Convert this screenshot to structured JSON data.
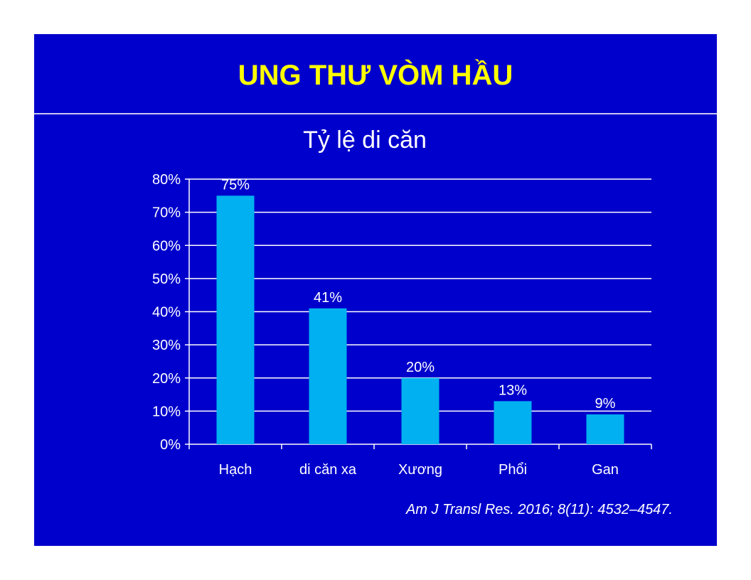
{
  "slide": {
    "title": "UNG THƯ VÒM HẦU",
    "citation": "Am J Transl Res. 2016; 8(11): 4532–4547.",
    "background_color": "#0000cc",
    "title_color": "#ffff00"
  },
  "chart_data": {
    "type": "bar",
    "title": "Tỷ lệ di căn",
    "categories": [
      "Hạch",
      "di căn xa",
      "Xương",
      "Phổi",
      "Gan"
    ],
    "values": [
      75,
      41,
      20,
      13,
      9
    ],
    "data_labels": [
      "75%",
      "41%",
      "20%",
      "13%",
      "9%"
    ],
    "y_ticks": [
      0,
      10,
      20,
      30,
      40,
      50,
      60,
      70,
      80
    ],
    "y_tick_labels": [
      "0%",
      "10%",
      "20%",
      "30%",
      "40%",
      "50%",
      "60%",
      "70%",
      "80%"
    ],
    "ylim": [
      0,
      80
    ],
    "xlabel": "",
    "ylabel": "",
    "grid": true,
    "bar_color": "#00b0f0",
    "text_color": "#ffffff"
  }
}
